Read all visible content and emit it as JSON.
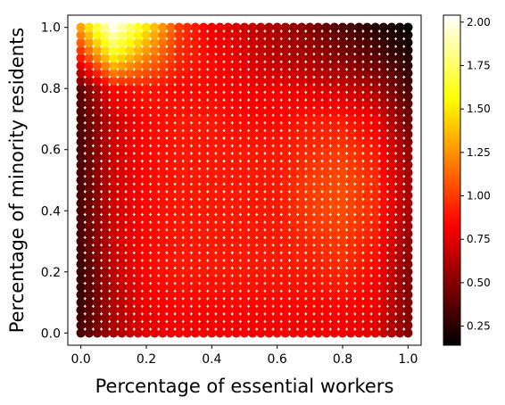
{
  "chart_data": {
    "type": "heatmap",
    "title": "",
    "xlabel": "Percentage of essential workers",
    "ylabel": "Percentage of minority residents",
    "xlim": [
      -0.04,
      1.04
    ],
    "ylim": [
      -0.04,
      1.04
    ],
    "x_ticks": [
      0.0,
      0.2,
      0.4,
      0.6,
      0.8,
      1.0
    ],
    "x_tick_labels": [
      "0.0",
      "0.2",
      "0.4",
      "0.6",
      "0.8",
      "1.0"
    ],
    "y_ticks": [
      0.0,
      0.2,
      0.4,
      0.6,
      0.8,
      1.0
    ],
    "y_tick_labels": [
      "0.0",
      "0.2",
      "0.4",
      "0.6",
      "0.8",
      "1.0"
    ],
    "grid": {
      "x_start": 0.0,
      "x_end": 1.0,
      "y_start": 0.0,
      "y_end": 1.0,
      "n": 41
    },
    "colormap": "hot",
    "colorbar": {
      "range": [
        0.14,
        2.04
      ],
      "ticks": [
        0.25,
        0.5,
        0.75,
        1.0,
        1.25,
        1.5,
        1.75,
        2.0
      ],
      "tick_labels": [
        "0.25",
        "0.50",
        "0.75",
        "1.00",
        "1.25",
        "1.50",
        "1.75",
        "2.00"
      ]
    },
    "field_samples": {
      "x": [
        0.0,
        0.1,
        0.2,
        0.3,
        0.4,
        0.5,
        0.6,
        0.7,
        0.8,
        0.9,
        1.0
      ],
      "y": [
        0.0,
        0.1,
        0.2,
        0.3,
        0.4,
        0.5,
        0.6,
        0.7,
        0.8,
        0.9,
        1.0
      ],
      "values": [
        [
          0.35,
          0.6,
          0.75,
          0.8,
          0.8,
          0.8,
          0.8,
          0.8,
          0.8,
          0.75,
          0.5
        ],
        [
          0.3,
          0.62,
          0.8,
          0.85,
          0.85,
          0.85,
          0.85,
          0.85,
          0.85,
          0.8,
          0.5
        ],
        [
          0.3,
          0.65,
          0.85,
          0.9,
          0.9,
          0.9,
          0.9,
          0.9,
          0.95,
          0.85,
          0.5
        ],
        [
          0.35,
          0.7,
          0.85,
          0.9,
          0.9,
          0.9,
          0.9,
          0.95,
          1.0,
          0.9,
          0.55
        ],
        [
          0.35,
          0.7,
          0.85,
          0.9,
          0.9,
          0.9,
          0.9,
          1.0,
          1.05,
          0.95,
          0.6
        ],
        [
          0.35,
          0.7,
          0.85,
          0.9,
          0.9,
          0.9,
          0.9,
          1.0,
          1.05,
          0.95,
          0.6
        ],
        [
          0.35,
          0.7,
          0.85,
          0.9,
          0.9,
          0.9,
          0.9,
          0.95,
          1.0,
          0.9,
          0.55
        ],
        [
          0.35,
          0.7,
          0.85,
          0.9,
          0.9,
          0.85,
          0.85,
          0.9,
          0.9,
          0.8,
          0.45
        ],
        [
          0.4,
          0.85,
          0.9,
          0.85,
          0.85,
          0.8,
          0.8,
          0.75,
          0.7,
          0.6,
          0.35
        ],
        [
          0.9,
          1.5,
          1.2,
          0.95,
          0.85,
          0.75,
          0.65,
          0.6,
          0.5,
          0.4,
          0.25
        ],
        [
          1.3,
          2.0,
          1.5,
          1.0,
          0.8,
          0.7,
          0.6,
          0.5,
          0.35,
          0.25,
          0.15
        ]
      ]
    }
  }
}
